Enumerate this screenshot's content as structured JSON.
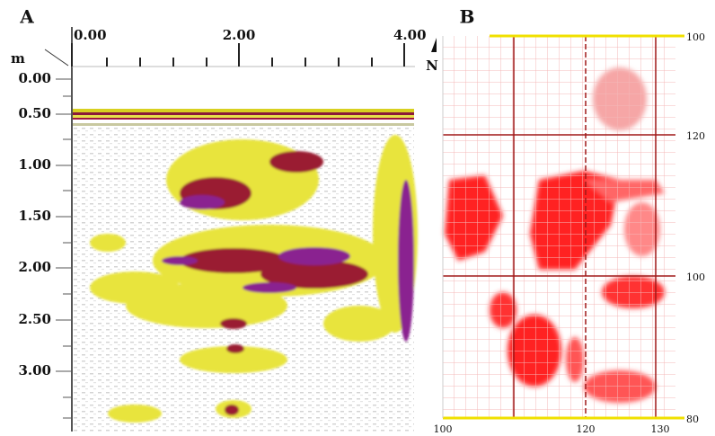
{
  "panel_a": {
    "label": "A",
    "unit": "m",
    "x_ticks": [
      "0.00",
      "2.00",
      "4.00"
    ],
    "y_ticks": [
      "0.00",
      "0.50",
      "1.00",
      "1.50",
      "2.00",
      "2.50",
      "3.00"
    ]
  },
  "panel_b": {
    "label": "B",
    "north": "N",
    "right_labels": [
      "100",
      "120",
      "100",
      "80"
    ],
    "bottom_labels": [
      "100",
      "120",
      "130"
    ]
  }
}
